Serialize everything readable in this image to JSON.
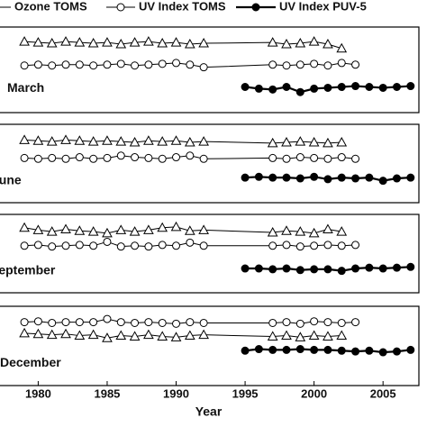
{
  "chart_data": [
    {
      "type": "line",
      "title": "March",
      "ylim": [
        0,
        100
      ],
      "xlim": [
        1977.1,
        2007.6
      ],
      "series": [
        {
          "name": "Ozone TOMS",
          "color": "#000000",
          "marker": "triangle",
          "x": [
            1979,
            1980,
            1981,
            1982,
            1983,
            1984,
            1985,
            1986,
            1987,
            1988,
            1989,
            1990,
            1991,
            1992,
            1997,
            1998,
            1999,
            2000,
            2001,
            2002
          ],
          "values": [
            83,
            82,
            81,
            83,
            82,
            81,
            82,
            80,
            82,
            83,
            81,
            82,
            80,
            81,
            82,
            80,
            81,
            83,
            80,
            75
          ]
        },
        {
          "name": "UV Index TOMS",
          "color": "#000000",
          "marker": "open-circle",
          "x": [
            1979,
            1980,
            1981,
            1982,
            1983,
            1984,
            1985,
            1986,
            1987,
            1988,
            1989,
            1990,
            1991,
            1992,
            1997,
            1998,
            1999,
            2000,
            2001,
            2002,
            2003
          ],
          "values": [
            55,
            56,
            55,
            56,
            56,
            55,
            56,
            57,
            55,
            56,
            57,
            58,
            56,
            53,
            56,
            55,
            56,
            57,
            55,
            58,
            56
          ]
        },
        {
          "name": "UV Index PUV-5",
          "color": "#000000",
          "marker": "filled-circle",
          "x": [
            1995,
            1996,
            1997,
            1998,
            1999,
            2000,
            2001,
            2002,
            2003,
            2004,
            2005,
            2006,
            2007
          ],
          "values": [
            30,
            28,
            27,
            30,
            24,
            28,
            29,
            30,
            31,
            30,
            29,
            30,
            31
          ]
        }
      ]
    },
    {
      "type": "line",
      "title": "June",
      "ylim": [
        0,
        100
      ],
      "xlim": [
        1977.1,
        2007.6
      ],
      "series": [
        {
          "color": "#000000",
          "marker": "triangle",
          "x": [
            1979,
            1980,
            1981,
            1982,
            1983,
            1984,
            1985,
            1986,
            1987,
            1988,
            1989,
            1990,
            1991,
            1992,
            1997,
            1998,
            1999,
            2000,
            2001,
            2002
          ],
          "values": [
            80,
            79,
            78,
            80,
            79,
            78,
            79,
            78,
            77,
            79,
            78,
            79,
            77,
            78,
            76,
            77,
            78,
            77,
            76,
            77
          ]
        },
        {
          "color": "#000000",
          "marker": "open-circle",
          "x": [
            1979,
            1980,
            1981,
            1982,
            1983,
            1984,
            1985,
            1986,
            1987,
            1988,
            1989,
            1990,
            1991,
            1992,
            1997,
            1998,
            1999,
            2000,
            2001,
            2002,
            2003
          ],
          "values": [
            57,
            56,
            57,
            56,
            58,
            56,
            57,
            60,
            58,
            57,
            56,
            58,
            60,
            56,
            57,
            56,
            58,
            57,
            56,
            58,
            56
          ]
        },
        {
          "color": "#000000",
          "marker": "filled-circle",
          "x": [
            1995,
            1996,
            1997,
            1998,
            1999,
            2000,
            2001,
            2002,
            2003,
            2004,
            2005,
            2006,
            2007
          ],
          "values": [
            32,
            33,
            32,
            32,
            31,
            33,
            30,
            32,
            31,
            32,
            28,
            31,
            32
          ]
        }
      ]
    },
    {
      "type": "line",
      "title": "September",
      "ylim": [
        0,
        100
      ],
      "xlim": [
        1977.1,
        2007.6
      ],
      "series": [
        {
          "color": "#000000",
          "marker": "triangle",
          "x": [
            1979,
            1980,
            1981,
            1982,
            1983,
            1984,
            1985,
            1986,
            1987,
            1988,
            1989,
            1990,
            1991,
            1992,
            1997,
            1998,
            1999,
            2000,
            2001,
            2002
          ],
          "values": [
            83,
            80,
            78,
            81,
            79,
            78,
            76,
            80,
            78,
            80,
            83,
            84,
            79,
            80,
            77,
            79,
            78,
            76,
            81,
            78
          ]
        },
        {
          "color": "#000000",
          "marker": "open-circle",
          "x": [
            1979,
            1980,
            1981,
            1982,
            1983,
            1984,
            1985,
            1986,
            1987,
            1988,
            1989,
            1990,
            1991,
            1992,
            1997,
            1998,
            1999,
            2000,
            2001,
            2002,
            2003
          ],
          "values": [
            60,
            61,
            59,
            60,
            61,
            60,
            65,
            59,
            60,
            59,
            61,
            60,
            64,
            60,
            60,
            61,
            59,
            60,
            61,
            60,
            61
          ]
        },
        {
          "color": "#000000",
          "marker": "filled-circle",
          "x": [
            1995,
            1996,
            1997,
            1998,
            1999,
            2000,
            2001,
            2002,
            2003,
            2004,
            2005,
            2006,
            2007
          ],
          "values": [
            31,
            31,
            30,
            31,
            29,
            30,
            30,
            28,
            31,
            32,
            31,
            32,
            33
          ]
        }
      ]
    },
    {
      "type": "line",
      "title": "December",
      "ylim": [
        0,
        100
      ],
      "xlim": [
        1977.1,
        2007.6
      ],
      "xlabel": "Year",
      "xticks": [
        1980,
        1985,
        1990,
        1995,
        2000,
        2005
      ],
      "series": [
        {
          "color": "#000000",
          "marker": "triangle",
          "x": [
            1979,
            1980,
            1981,
            1982,
            1983,
            1984,
            1985,
            1986,
            1987,
            1988,
            1989,
            1990,
            1991,
            1992,
            1997,
            1998,
            1999,
            2000,
            2001,
            2002
          ],
          "values": [
            66,
            65,
            64,
            65,
            63,
            64,
            60,
            63,
            62,
            64,
            62,
            61,
            63,
            64,
            62,
            63,
            61,
            63,
            62,
            63
          ]
        },
        {
          "color": "#000000",
          "marker": "open-circle",
          "x": [
            1979,
            1980,
            1981,
            1982,
            1983,
            1984,
            1985,
            1986,
            1987,
            1988,
            1989,
            1990,
            1991,
            1992,
            1997,
            1998,
            1999,
            2000,
            2001,
            2002,
            2003
          ],
          "values": [
            80,
            81,
            79,
            80,
            80,
            80,
            84,
            80,
            79,
            80,
            79,
            78,
            80,
            79,
            79,
            80,
            78,
            81,
            80,
            79,
            80
          ]
        },
        {
          "color": "#000000",
          "marker": "filled-circle",
          "x": [
            1995,
            1996,
            1997,
            1998,
            1999,
            2000,
            2001,
            2002,
            2003,
            2004,
            2005,
            2006,
            2007
          ],
          "values": [
            44,
            46,
            45,
            45,
            46,
            45,
            45,
            44,
            43,
            44,
            42,
            43,
            45
          ]
        }
      ]
    }
  ]
}
